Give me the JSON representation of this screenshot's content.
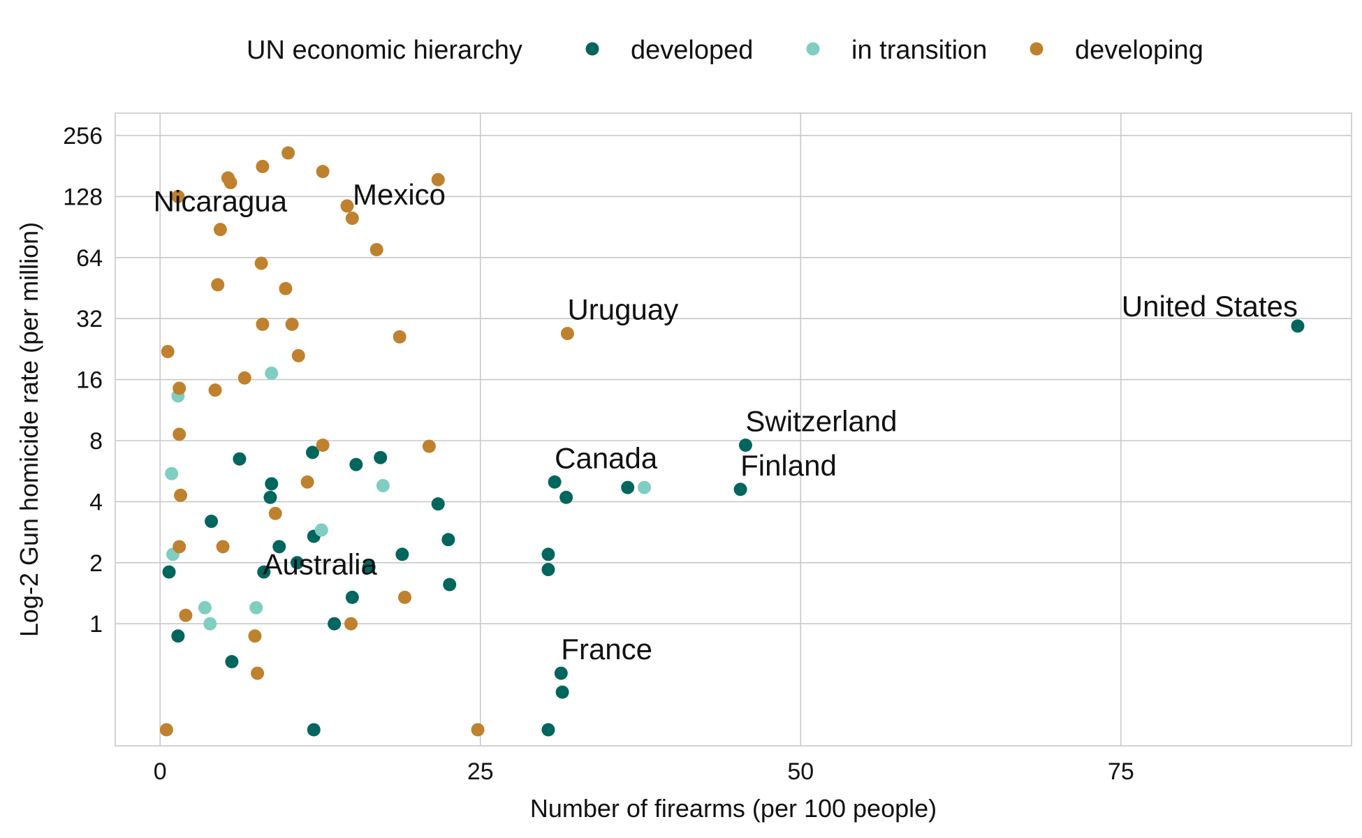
{
  "chart_data": {
    "type": "scatter",
    "xlabel": "Number of firearms (per 100 people)",
    "ylabel": "Log-2 Gun homicide rate (per million)",
    "y_scale": "log2",
    "xlim": [
      -3.5,
      93
    ],
    "ylim": [
      0.25,
      330
    ],
    "x_ticks": [
      0,
      25,
      50,
      75
    ],
    "x_tick_labels": [
      "0",
      "25",
      "50",
      "75"
    ],
    "y_ticks": [
      1,
      2,
      4,
      8,
      16,
      32,
      64,
      128,
      256
    ],
    "y_tick_labels": [
      "1",
      "2",
      "4",
      "8",
      "16",
      "32",
      "64",
      "128",
      "256"
    ],
    "grid": true,
    "legend": {
      "title": "UN economic hierarchy",
      "position": "top",
      "entries": [
        "developed",
        "in transition",
        "developing"
      ]
    },
    "colors": {
      "developed": "#01665e",
      "in transition": "#80cdc1",
      "developing": "#bf812d"
    },
    "series": [
      {
        "name": "developed",
        "points": [
          [
            88.8,
            29.4
          ],
          [
            45.7,
            7.6
          ],
          [
            45.3,
            4.6
          ],
          [
            36.5,
            4.7
          ],
          [
            30.8,
            5.0
          ],
          [
            31.7,
            4.2
          ],
          [
            30.3,
            2.2
          ],
          [
            30.3,
            1.85
          ],
          [
            31.3,
            0.57
          ],
          [
            31.4,
            0.46
          ],
          [
            30.3,
            0.3
          ],
          [
            6.2,
            6.5
          ],
          [
            11.9,
            7.0
          ],
          [
            15.3,
            6.1
          ],
          [
            17.2,
            6.6
          ],
          [
            8.7,
            4.9
          ],
          [
            8.6,
            4.2
          ],
          [
            21.7,
            3.9
          ],
          [
            4.0,
            3.2
          ],
          [
            12.0,
            2.7
          ],
          [
            9.3,
            2.4
          ],
          [
            22.5,
            2.6
          ],
          [
            18.9,
            2.2
          ],
          [
            10.7,
            2.0
          ],
          [
            0.7,
            1.8
          ],
          [
            16.3,
            1.9
          ],
          [
            8.1,
            1.8
          ],
          [
            22.6,
            1.56
          ],
          [
            15.0,
            1.35
          ],
          [
            13.6,
            1.0
          ],
          [
            1.4,
            0.87
          ],
          [
            5.6,
            0.65
          ],
          [
            12.0,
            0.3
          ]
        ]
      },
      {
        "name": "in transition",
        "points": [
          [
            37.8,
            4.7
          ],
          [
            8.7,
            17.2
          ],
          [
            1.4,
            13.3
          ],
          [
            0.9,
            5.5
          ],
          [
            17.4,
            4.8
          ],
          [
            12.6,
            2.9
          ],
          [
            1.0,
            2.2
          ],
          [
            7.5,
            1.2
          ],
          [
            3.5,
            1.2
          ],
          [
            3.9,
            1.0
          ]
        ]
      },
      {
        "name": "developing",
        "points": [
          [
            10.0,
            210
          ],
          [
            8.0,
            180
          ],
          [
            12.7,
            170
          ],
          [
            5.3,
            158
          ],
          [
            5.5,
            150
          ],
          [
            21.7,
            155
          ],
          [
            1.4,
            128
          ],
          [
            14.6,
            115
          ],
          [
            15.0,
            100
          ],
          [
            4.7,
            88
          ],
          [
            16.9,
            70
          ],
          [
            7.9,
            60
          ],
          [
            4.5,
            47
          ],
          [
            9.8,
            45
          ],
          [
            8.0,
            30
          ],
          [
            10.3,
            30
          ],
          [
            31.8,
            27
          ],
          [
            18.7,
            26
          ],
          [
            0.6,
            22
          ],
          [
            10.8,
            21
          ],
          [
            6.6,
            16.3
          ],
          [
            1.5,
            14.5
          ],
          [
            4.3,
            14.2
          ],
          [
            1.5,
            8.6
          ],
          [
            12.7,
            7.6
          ],
          [
            21.0,
            7.5
          ],
          [
            11.5,
            5.0
          ],
          [
            9.0,
            3.5
          ],
          [
            1.6,
            4.3
          ],
          [
            1.5,
            2.4
          ],
          [
            4.9,
            2.4
          ],
          [
            19.1,
            1.35
          ],
          [
            2.0,
            1.1
          ],
          [
            14.9,
            1.0
          ],
          [
            7.4,
            0.87
          ],
          [
            7.6,
            0.57
          ],
          [
            0.5,
            0.3
          ],
          [
            24.8,
            0.3
          ]
        ]
      }
    ],
    "annotations": [
      {
        "text": "Mexico",
        "x": 14.6,
        "y": 115
      },
      {
        "text": "Nicaragua",
        "x": 4.7,
        "y": 88
      },
      {
        "text": "Uruguay",
        "x": 31.8,
        "y": 27
      },
      {
        "text": "United States",
        "x": 88.8,
        "y": 29.4
      },
      {
        "text": "Switzerland",
        "x": 45.7,
        "y": 7.6
      },
      {
        "text": "Canada",
        "x": 30.8,
        "y": 5.0
      },
      {
        "text": "Finland",
        "x": 45.3,
        "y": 4.6
      },
      {
        "text": "Australia",
        "x": 16.3,
        "y": 1.9
      },
      {
        "text": "France",
        "x": 31.3,
        "y": 0.57
      }
    ]
  }
}
